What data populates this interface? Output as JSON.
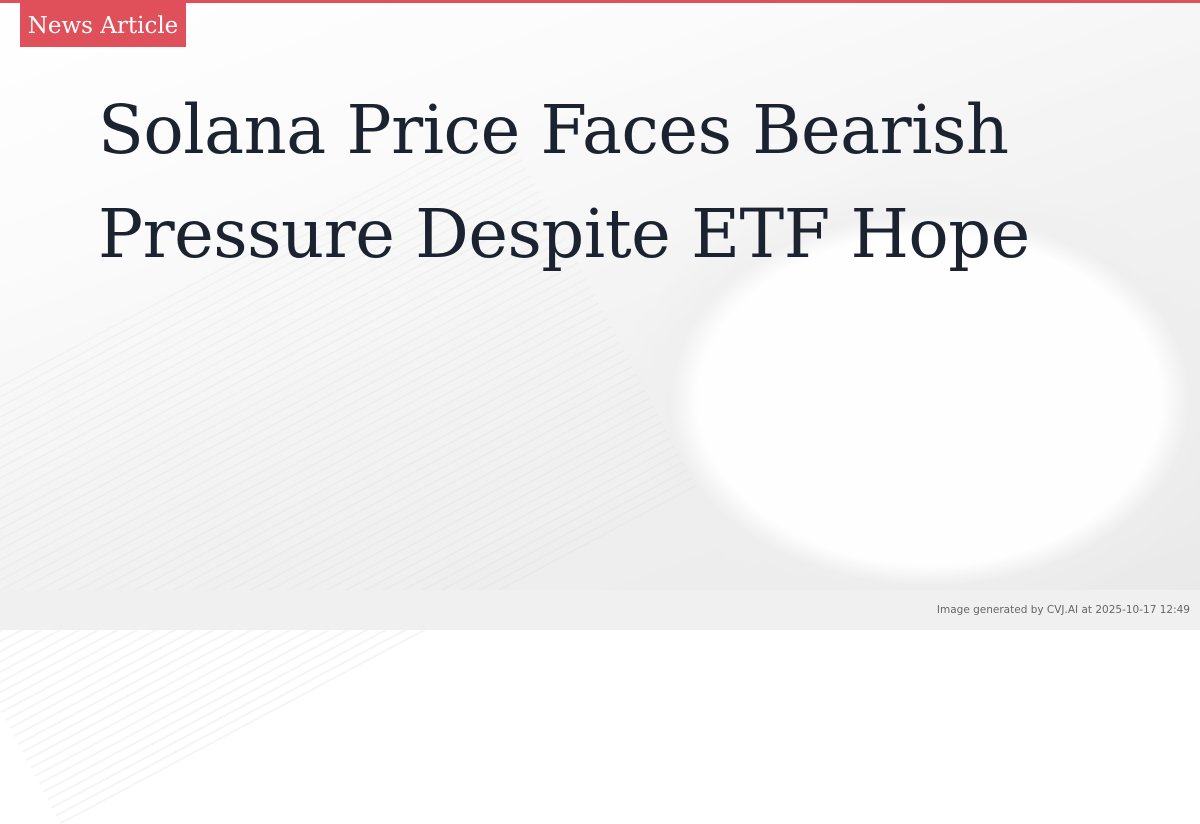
{
  "badge": {
    "label": "News Article"
  },
  "article": {
    "title": "Solana Price Faces Bearish Pressure Despite ETF Hope"
  },
  "footer": {
    "credit": "Image generated by CVJ.AI at 2025-10-17 12:49"
  },
  "colors": {
    "accent": "#e0505a",
    "title": "#1c2330",
    "footer_bg": "#f0f0f0"
  }
}
